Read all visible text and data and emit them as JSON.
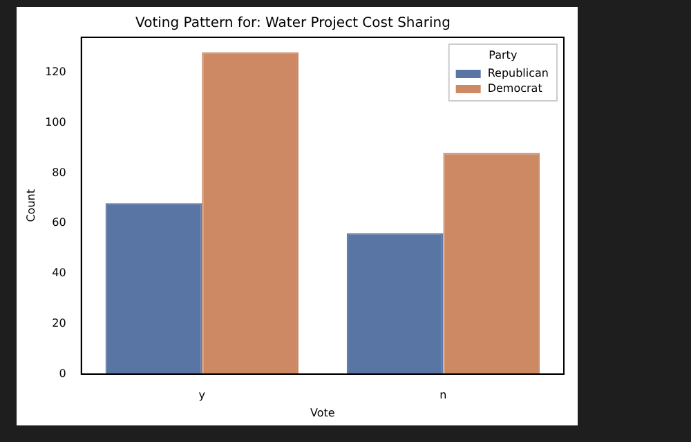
{
  "chart_data": {
    "type": "bar",
    "title": "Voting Pattern for: Water Project Cost Sharing",
    "xlabel": "Vote",
    "ylabel": "Count",
    "legend_title": "Party",
    "categories": [
      "y",
      "n"
    ],
    "series": [
      {
        "name": "Republican",
        "color": "#5975a4",
        "values": [
          68,
          56
        ]
      },
      {
        "name": "Democrat",
        "color": "#cc8963",
        "values": [
          128,
          88
        ]
      }
    ],
    "ylim": [
      0,
      134
    ],
    "yticks": [
      0,
      20,
      40,
      60,
      80,
      100,
      120
    ],
    "grid": false,
    "legend": "top right"
  }
}
